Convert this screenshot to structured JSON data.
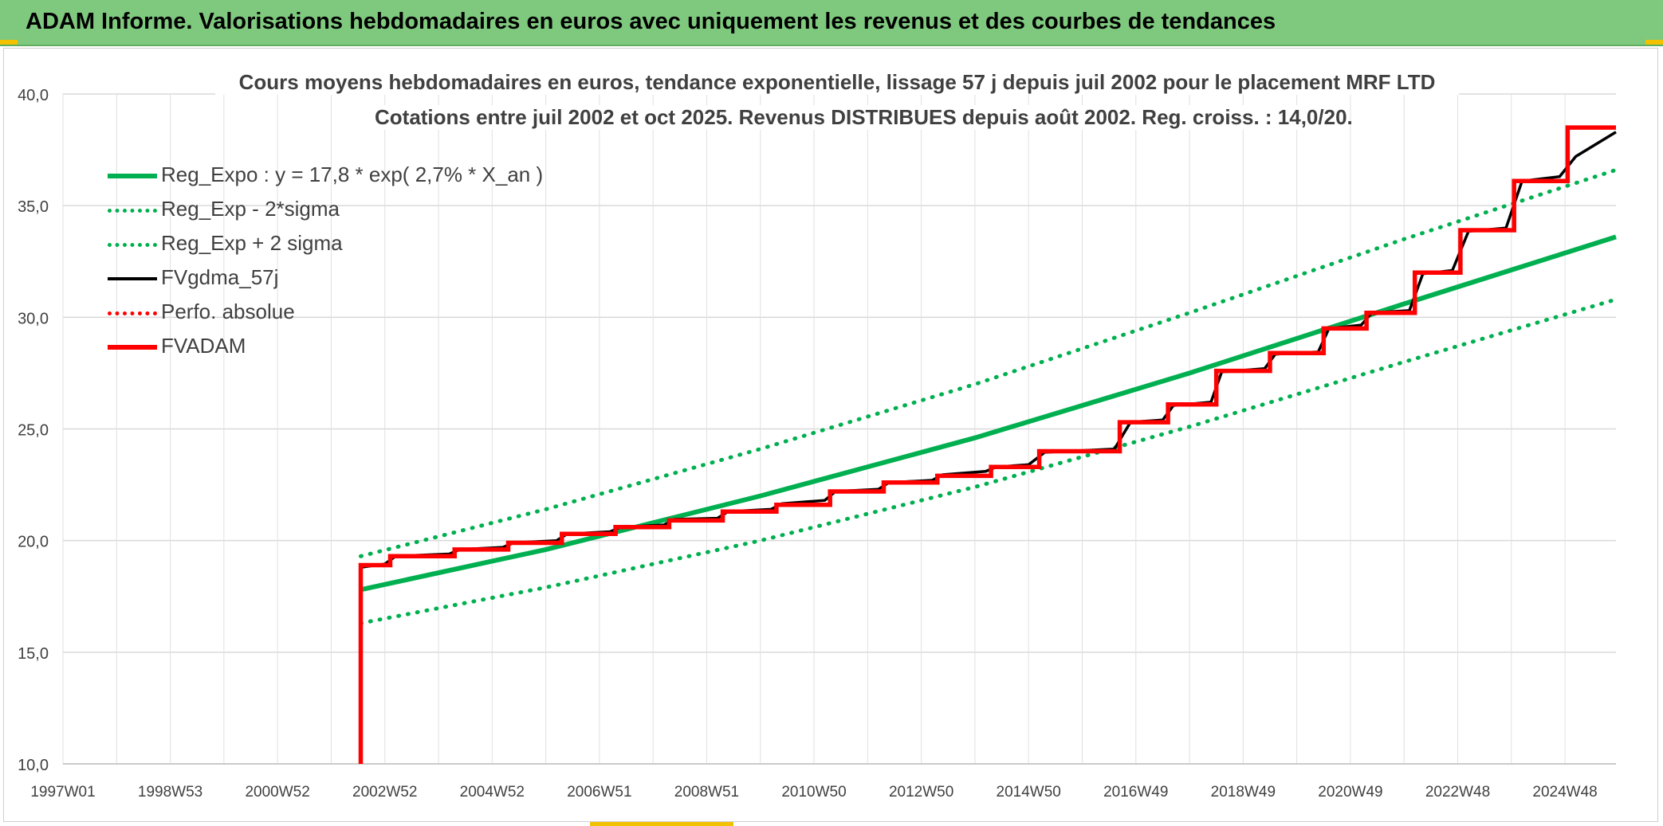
{
  "header": {
    "title": "ADAM Informe. Valorisations hebdomadaires en euros avec uniquement les revenus et des courbes de tendances"
  },
  "colors": {
    "header_bg": "#7fc97f",
    "green": "#00b050",
    "black": "#000000",
    "red": "#ff0000",
    "grid": "#d9d9d9",
    "text": "#404040"
  },
  "chart_data": {
    "type": "line",
    "title": "Cours moyens hebdomadaires en euros, tendance exponentielle, lissage 57 j depuis juil 2002 pour le placement MRF LTD",
    "subtitle": "Cotations entre juil 2002 et oct 2025. Revenus DISTRIBUES depuis août 2002. Reg. croiss. : 14,0/20.",
    "xlabel": "",
    "ylabel": "",
    "ylim": [
      10,
      40
    ],
    "xlim": [
      1997.0,
      2025.95
    ],
    "grid": true,
    "legend_position": "top-left",
    "y_ticks": [
      "10,0",
      "15,0",
      "20,0",
      "25,0",
      "30,0",
      "35,0",
      "40,0"
    ],
    "x_ticks": [
      {
        "label": "1997W01",
        "x": 1997.0
      },
      {
        "label": "1998W53",
        "x": 1999.0
      },
      {
        "label": "2000W52",
        "x": 2001.0
      },
      {
        "label": "2002W52",
        "x": 2003.0
      },
      {
        "label": "2004W52",
        "x": 2005.0
      },
      {
        "label": "2006W51",
        "x": 2007.0
      },
      {
        "label": "2008W51",
        "x": 2009.0
      },
      {
        "label": "2010W50",
        "x": 2011.0
      },
      {
        "label": "2012W50",
        "x": 2013.0
      },
      {
        "label": "2014W50",
        "x": 2015.0
      },
      {
        "label": "2016W49",
        "x": 2017.0
      },
      {
        "label": "2018W49",
        "x": 2019.0
      },
      {
        "label": "2020W49",
        "x": 2021.0
      },
      {
        "label": "2022W48",
        "x": 2023.0
      },
      {
        "label": "2024W48",
        "x": 2025.0
      }
    ],
    "series": [
      {
        "name": "Reg_Expo : y = 17,8 * exp( 2,7% *  X_an )",
        "color": "#00b050",
        "style": "solid",
        "points": [
          [
            2002.55,
            17.8
          ],
          [
            2006.0,
            19.6
          ],
          [
            2010.0,
            22.0
          ],
          [
            2014.0,
            24.6
          ],
          [
            2018.0,
            27.5
          ],
          [
            2022.0,
            30.6
          ],
          [
            2025.95,
            33.6
          ]
        ]
      },
      {
        "name": "Reg_Exp - 2*sigma",
        "color": "#00b050",
        "style": "dotted",
        "points": [
          [
            2002.55,
            16.3
          ],
          [
            2006.0,
            17.9
          ],
          [
            2010.0,
            20.0
          ],
          [
            2014.0,
            22.4
          ],
          [
            2018.0,
            25.1
          ],
          [
            2022.0,
            28.0
          ],
          [
            2025.95,
            30.8
          ]
        ]
      },
      {
        "name": "Reg_Exp + 2 sigma",
        "color": "#00b050",
        "style": "dotted",
        "points": [
          [
            2002.55,
            19.3
          ],
          [
            2006.0,
            21.4
          ],
          [
            2010.0,
            24.1
          ],
          [
            2014.0,
            27.0
          ],
          [
            2018.0,
            30.2
          ],
          [
            2022.0,
            33.5
          ],
          [
            2025.95,
            36.6
          ]
        ]
      },
      {
        "name": "FVgdma_57j",
        "color": "#000000",
        "style": "solid",
        "points": [
          [
            2002.55,
            18.8
          ],
          [
            2003.0,
            18.95
          ],
          [
            2003.2,
            19.3
          ],
          [
            2004.2,
            19.4
          ],
          [
            2004.4,
            19.6
          ],
          [
            2005.2,
            19.7
          ],
          [
            2005.4,
            19.9
          ],
          [
            2006.2,
            20.0
          ],
          [
            2006.4,
            20.3
          ],
          [
            2007.2,
            20.4
          ],
          [
            2007.4,
            20.6
          ],
          [
            2008.2,
            20.7
          ],
          [
            2008.4,
            20.95
          ],
          [
            2009.2,
            21.0
          ],
          [
            2009.4,
            21.3
          ],
          [
            2010.2,
            21.4
          ],
          [
            2010.4,
            21.65
          ],
          [
            2011.2,
            21.8
          ],
          [
            2011.4,
            22.2
          ],
          [
            2012.2,
            22.3
          ],
          [
            2012.4,
            22.6
          ],
          [
            2013.2,
            22.7
          ],
          [
            2013.4,
            22.95
          ],
          [
            2014.2,
            23.1
          ],
          [
            2014.4,
            23.3
          ],
          [
            2015.0,
            23.4
          ],
          [
            2015.3,
            23.95
          ],
          [
            2016.6,
            24.1
          ],
          [
            2016.9,
            25.3
          ],
          [
            2017.5,
            25.4
          ],
          [
            2017.7,
            26.05
          ],
          [
            2018.4,
            26.2
          ],
          [
            2018.6,
            27.55
          ],
          [
            2019.4,
            27.7
          ],
          [
            2019.6,
            28.35
          ],
          [
            2020.4,
            28.45
          ],
          [
            2020.6,
            29.5
          ],
          [
            2021.2,
            29.65
          ],
          [
            2021.4,
            30.2
          ],
          [
            2022.1,
            30.3
          ],
          [
            2022.35,
            31.95
          ],
          [
            2022.9,
            32.1
          ],
          [
            2023.2,
            33.85
          ],
          [
            2023.9,
            34.0
          ],
          [
            2024.2,
            36.1
          ],
          [
            2024.9,
            36.3
          ],
          [
            2025.2,
            37.2
          ],
          [
            2025.95,
            38.3
          ]
        ]
      },
      {
        "name": "Perfo. absolue",
        "color": "#ff0000",
        "style": "dotted",
        "points": []
      },
      {
        "name": "FVADAM",
        "color": "#ff0000",
        "style": "solid-thick",
        "points": [
          [
            2002.55,
            10.0
          ],
          [
            2002.55,
            18.9
          ],
          [
            2003.1,
            18.9
          ],
          [
            2003.1,
            19.3
          ],
          [
            2004.3,
            19.3
          ],
          [
            2004.3,
            19.6
          ],
          [
            2005.3,
            19.6
          ],
          [
            2005.3,
            19.9
          ],
          [
            2006.3,
            19.9
          ],
          [
            2006.3,
            20.3
          ],
          [
            2007.3,
            20.3
          ],
          [
            2007.3,
            20.6
          ],
          [
            2008.3,
            20.6
          ],
          [
            2008.3,
            20.9
          ],
          [
            2009.3,
            20.9
          ],
          [
            2009.3,
            21.3
          ],
          [
            2010.3,
            21.3
          ],
          [
            2010.3,
            21.6
          ],
          [
            2011.3,
            21.6
          ],
          [
            2011.3,
            22.2
          ],
          [
            2012.3,
            22.2
          ],
          [
            2012.3,
            22.6
          ],
          [
            2013.3,
            22.6
          ],
          [
            2013.3,
            22.9
          ],
          [
            2014.3,
            22.9
          ],
          [
            2014.3,
            23.3
          ],
          [
            2015.2,
            23.3
          ],
          [
            2015.2,
            24.0
          ],
          [
            2016.7,
            24.0
          ],
          [
            2016.7,
            25.3
          ],
          [
            2017.6,
            25.3
          ],
          [
            2017.6,
            26.1
          ],
          [
            2018.5,
            26.1
          ],
          [
            2018.5,
            27.6
          ],
          [
            2019.5,
            27.6
          ],
          [
            2019.5,
            28.4
          ],
          [
            2020.5,
            28.4
          ],
          [
            2020.5,
            29.5
          ],
          [
            2021.3,
            29.5
          ],
          [
            2021.3,
            30.2
          ],
          [
            2022.2,
            30.2
          ],
          [
            2022.2,
            32.0
          ],
          [
            2023.05,
            32.0
          ],
          [
            2023.05,
            33.9
          ],
          [
            2024.05,
            33.9
          ],
          [
            2024.05,
            36.1
          ],
          [
            2025.05,
            36.1
          ],
          [
            2025.05,
            38.5
          ],
          [
            2025.95,
            38.5
          ]
        ]
      }
    ]
  }
}
